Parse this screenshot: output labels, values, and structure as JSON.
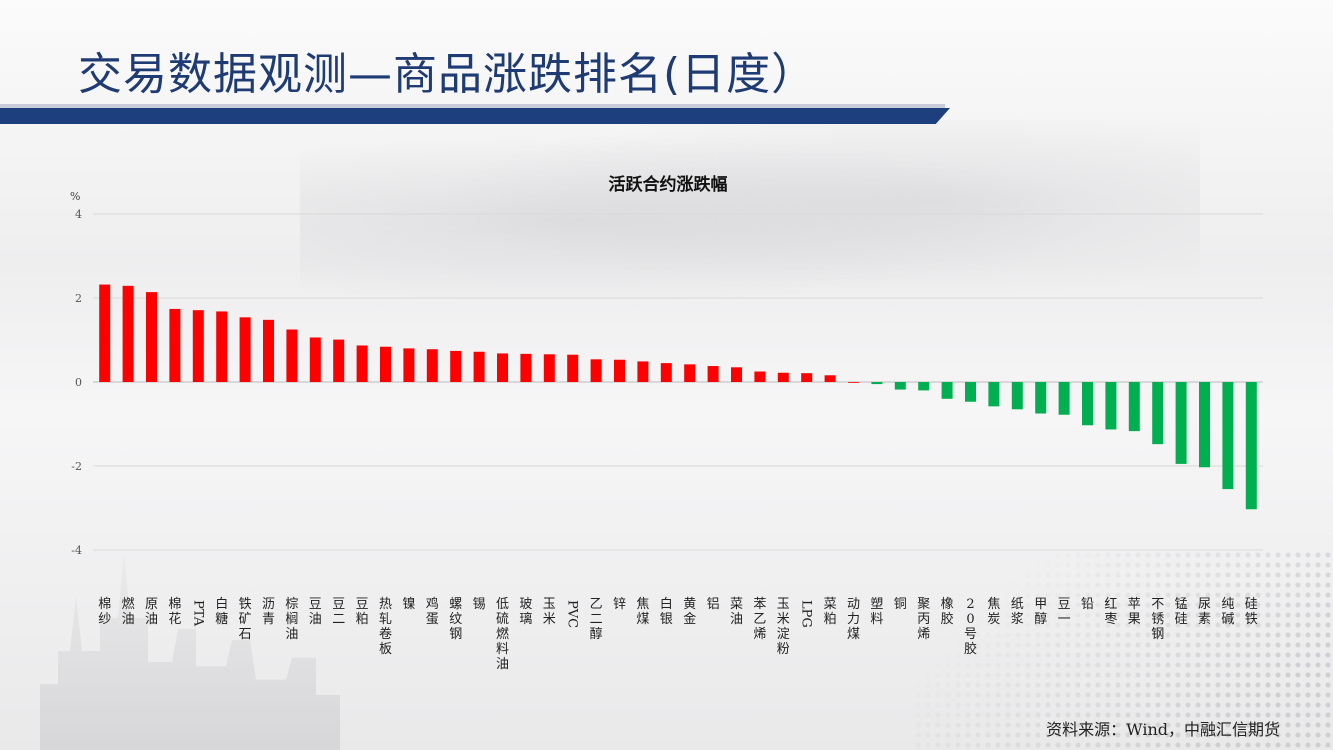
{
  "slide": {
    "title": "交易数据观测—商品涨跌排名(日度）",
    "source": "资料来源：Wind，中融汇信期货"
  },
  "colors": {
    "up": "#ff0000",
    "down": "#00b050",
    "title": "#1f3b73",
    "band": "#1d3f7d"
  },
  "chart_data": {
    "type": "bar",
    "title": "活跃合约涨跌幅",
    "ylabel": "%",
    "ylim": [
      -4,
      4
    ],
    "yticks": [
      4,
      2,
      0,
      -2,
      -4
    ],
    "grid": true,
    "categories": [
      "棉纱",
      "燃油",
      "原油",
      "棉花",
      "PTA",
      "白糖",
      "铁矿石",
      "沥青",
      "棕榈油",
      "豆油",
      "豆二",
      "豆粕",
      "热轧卷板",
      "镍",
      "鸡蛋",
      "螺纹钢",
      "锡",
      "低硫燃料油",
      "玻璃",
      "玉米",
      "PVC",
      "乙二醇",
      "锌",
      "焦煤",
      "白银",
      "黄金",
      "铝",
      "菜油",
      "苯乙烯",
      "玉米淀粉",
      "LPG",
      "菜粕",
      "动力煤",
      "塑料",
      "铜",
      "聚丙烯",
      "橡胶",
      "20号胶",
      "焦炭",
      "纸浆",
      "甲醇",
      "豆一",
      "铅",
      "红枣",
      "苹果",
      "不锈钢",
      "锰硅",
      "尿素",
      "纯碱",
      "硅铁"
    ],
    "values": [
      2.32,
      2.29,
      2.14,
      1.74,
      1.71,
      1.68,
      1.54,
      1.48,
      1.25,
      1.06,
      1.01,
      0.87,
      0.84,
      0.8,
      0.78,
      0.74,
      0.72,
      0.68,
      0.67,
      0.66,
      0.65,
      0.54,
      0.53,
      0.49,
      0.45,
      0.42,
      0.38,
      0.35,
      0.25,
      0.22,
      0.21,
      0.16,
      0.0,
      -0.05,
      -0.18,
      -0.2,
      -0.4,
      -0.47,
      -0.58,
      -0.65,
      -0.75,
      -0.78,
      -1.03,
      -1.13,
      -1.17,
      -1.48,
      -1.95,
      -2.03,
      -2.55,
      -3.03
    ]
  }
}
